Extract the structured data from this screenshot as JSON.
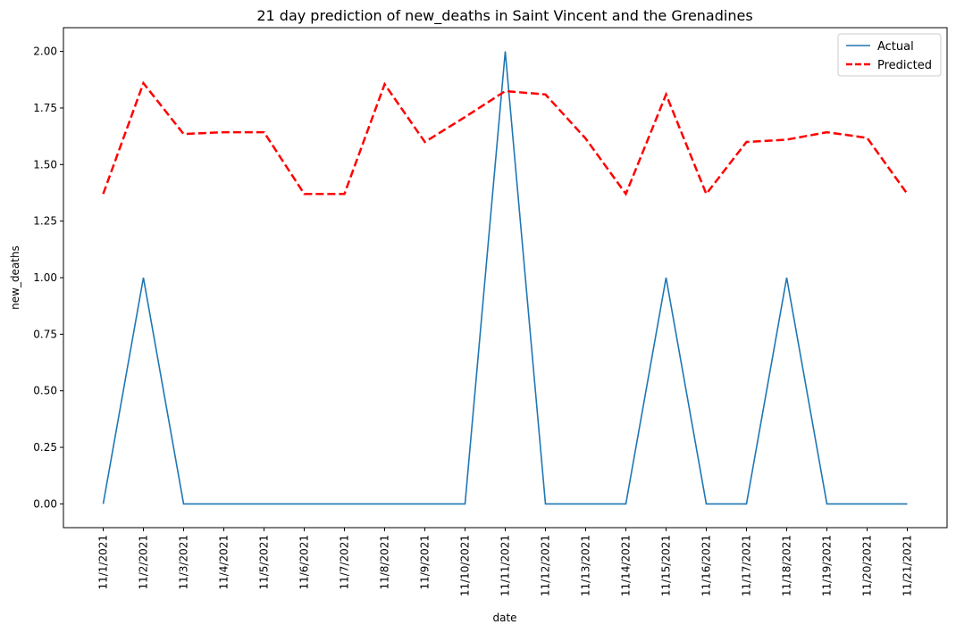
{
  "chart_data": {
    "type": "line",
    "title": "21 day prediction of new_deaths in Saint Vincent and the Grenadines",
    "xlabel": "date",
    "ylabel": "new_deaths",
    "categories": [
      "11/1/2021",
      "11/2/2021",
      "11/3/2021",
      "11/4/2021",
      "11/5/2021",
      "11/6/2021",
      "11/7/2021",
      "11/8/2021",
      "11/9/2021",
      "11/10/2021",
      "11/11/2021",
      "11/12/2021",
      "11/13/2021",
      "11/14/2021",
      "11/15/2021",
      "11/16/2021",
      "11/17/2021",
      "11/18/2021",
      "11/19/2021",
      "11/20/2021",
      "11/21/2021"
    ],
    "ylim": [
      -0.105,
      2.105
    ],
    "yticks": [
      0.0,
      0.25,
      0.5,
      0.75,
      1.0,
      1.25,
      1.5,
      1.75,
      2.0
    ],
    "ytick_labels": [
      "0.00",
      "0.25",
      "0.50",
      "0.75",
      "1.00",
      "1.25",
      "1.50",
      "1.75",
      "2.00"
    ],
    "grid": false,
    "legend_position": "top-right",
    "series": [
      {
        "name": "Actual",
        "color": "#1f77b4",
        "style": "solid",
        "values": [
          0,
          1,
          0,
          0,
          0,
          0,
          0,
          0,
          0,
          0,
          2,
          0,
          0,
          0,
          1,
          0,
          0,
          1,
          0,
          0,
          0
        ]
      },
      {
        "name": "Predicted",
        "color": "#ff0000",
        "style": "dashed",
        "values": [
          1.37,
          1.86,
          1.635,
          1.643,
          1.643,
          1.37,
          1.37,
          1.855,
          1.6,
          1.71,
          1.825,
          1.81,
          1.615,
          1.37,
          1.81,
          1.37,
          1.6,
          1.61,
          1.643,
          1.618,
          1.37
        ]
      }
    ]
  }
}
